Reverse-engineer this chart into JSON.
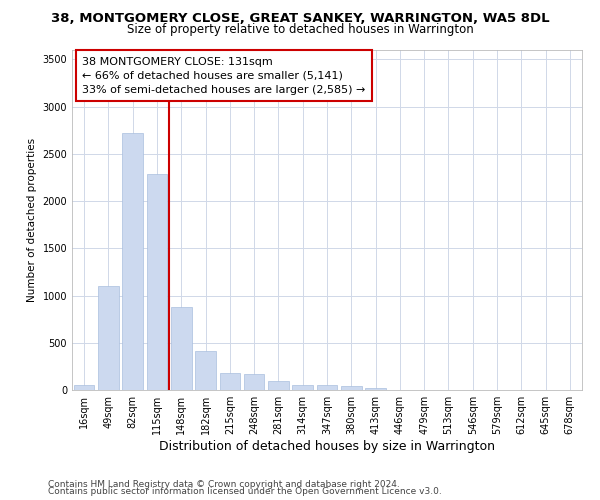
{
  "title": "38, MONTGOMERY CLOSE, GREAT SANKEY, WARRINGTON, WA5 8DL",
  "subtitle": "Size of property relative to detached houses in Warrington",
  "xlabel": "Distribution of detached houses by size in Warrington",
  "ylabel": "Number of detached properties",
  "categories": [
    "16sqm",
    "49sqm",
    "82sqm",
    "115sqm",
    "148sqm",
    "182sqm",
    "215sqm",
    "248sqm",
    "281sqm",
    "314sqm",
    "347sqm",
    "380sqm",
    "413sqm",
    "446sqm",
    "479sqm",
    "513sqm",
    "546sqm",
    "579sqm",
    "612sqm",
    "645sqm",
    "678sqm"
  ],
  "values": [
    50,
    1100,
    2720,
    2290,
    880,
    415,
    175,
    165,
    95,
    55,
    50,
    40,
    25,
    5,
    5,
    2,
    2,
    2,
    1,
    1,
    1
  ],
  "bar_color": "#ccd9ef",
  "bar_edge_color": "#aabfdf",
  "vline_x_index": 3,
  "vline_color": "#cc0000",
  "vline_x_pos": 3.5,
  "annotation_text": "38 MONTGOMERY CLOSE: 131sqm\n← 66% of detached houses are smaller (5,141)\n33% of semi-detached houses are larger (2,585) →",
  "annotation_box_facecolor": "#ffffff",
  "annotation_box_edgecolor": "#cc0000",
  "ylim": [
    0,
    3600
  ],
  "yticks": [
    0,
    500,
    1000,
    1500,
    2000,
    2500,
    3000,
    3500
  ],
  "bg_color": "#ffffff",
  "axes_bg_color": "#ffffff",
  "grid_color": "#d0d8e8",
  "title_fontsize": 9.5,
  "subtitle_fontsize": 8.5,
  "xlabel_fontsize": 9,
  "ylabel_fontsize": 7.5,
  "tick_fontsize": 7,
  "annotation_fontsize": 8,
  "footer_fontsize": 6.5,
  "footer_line1": "Contains HM Land Registry data © Crown copyright and database right 2024.",
  "footer_line2": "Contains public sector information licensed under the Open Government Licence v3.0."
}
